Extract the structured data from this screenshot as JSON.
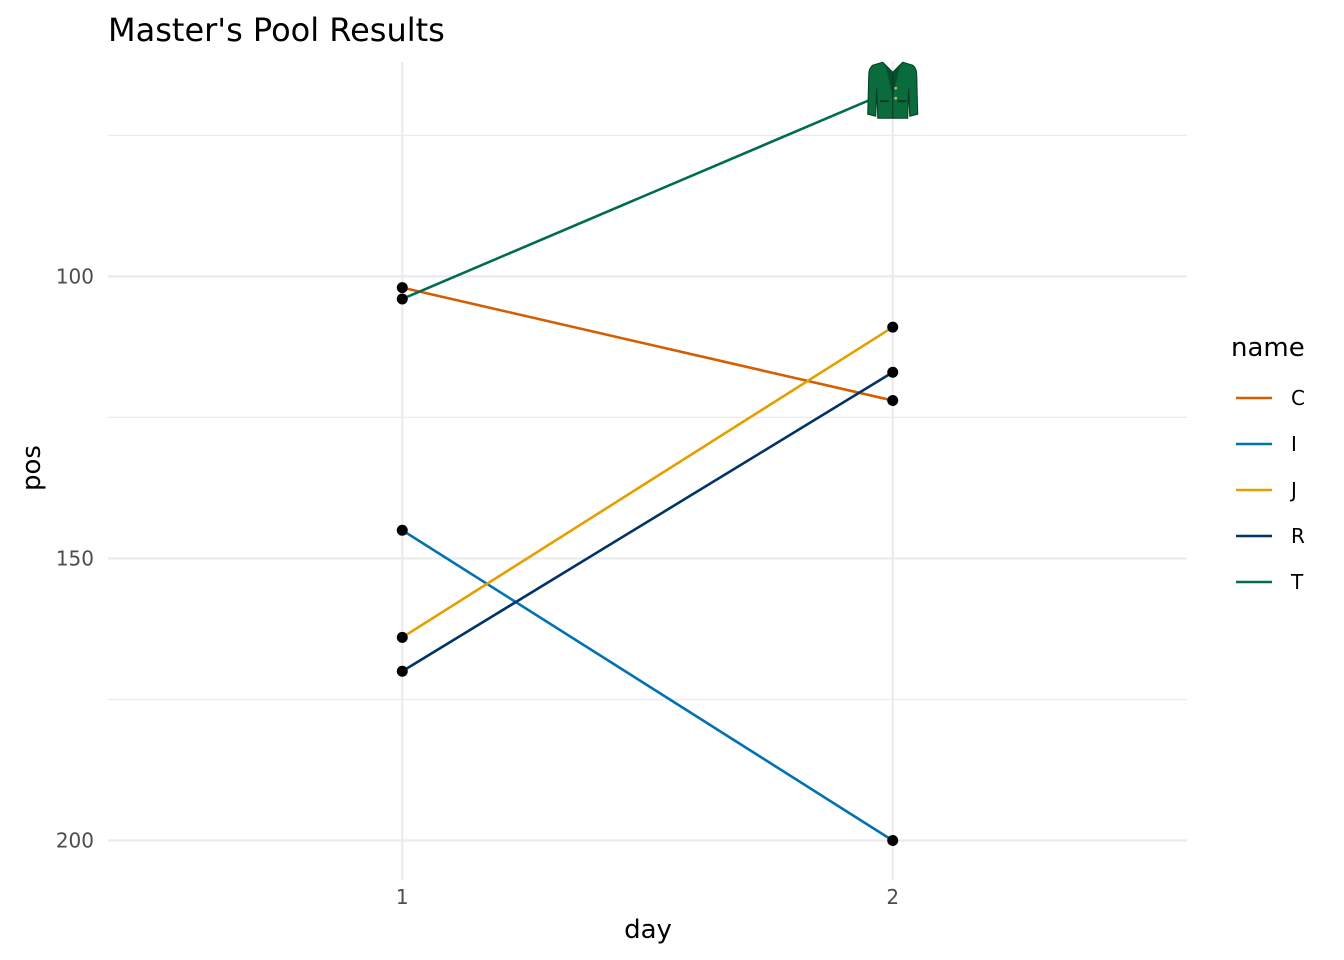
{
  "chart_data": {
    "type": "line",
    "title": "Master's Pool Results",
    "xlabel": "day",
    "ylabel": "pos",
    "x": [
      1,
      2
    ],
    "x_ticks": [
      "1",
      "2"
    ],
    "xlim": [
      0.4,
      2.6
    ],
    "y_ticks": [
      "100",
      "150",
      "200"
    ],
    "y_tick_values": [
      100,
      150,
      200
    ],
    "ylim": [
      62,
      207
    ],
    "y_reversed": true,
    "grid": true,
    "legend": {
      "title": "name",
      "position": "right"
    },
    "series": [
      {
        "name": "C",
        "color": "#D55E00",
        "values": [
          102,
          122
        ]
      },
      {
        "name": "I",
        "color": "#0072B2",
        "values": [
          145,
          200
        ]
      },
      {
        "name": "J",
        "color": "#E69F00",
        "values": [
          164,
          109
        ]
      },
      {
        "name": "R",
        "color": "#003366",
        "values": [
          170,
          117
        ]
      },
      {
        "name": "T",
        "color": "#006C52",
        "values": [
          104,
          67
        ]
      }
    ],
    "annotation": {
      "icon": "green-jacket-icon",
      "series": "T",
      "x": 2,
      "y": 67
    }
  }
}
